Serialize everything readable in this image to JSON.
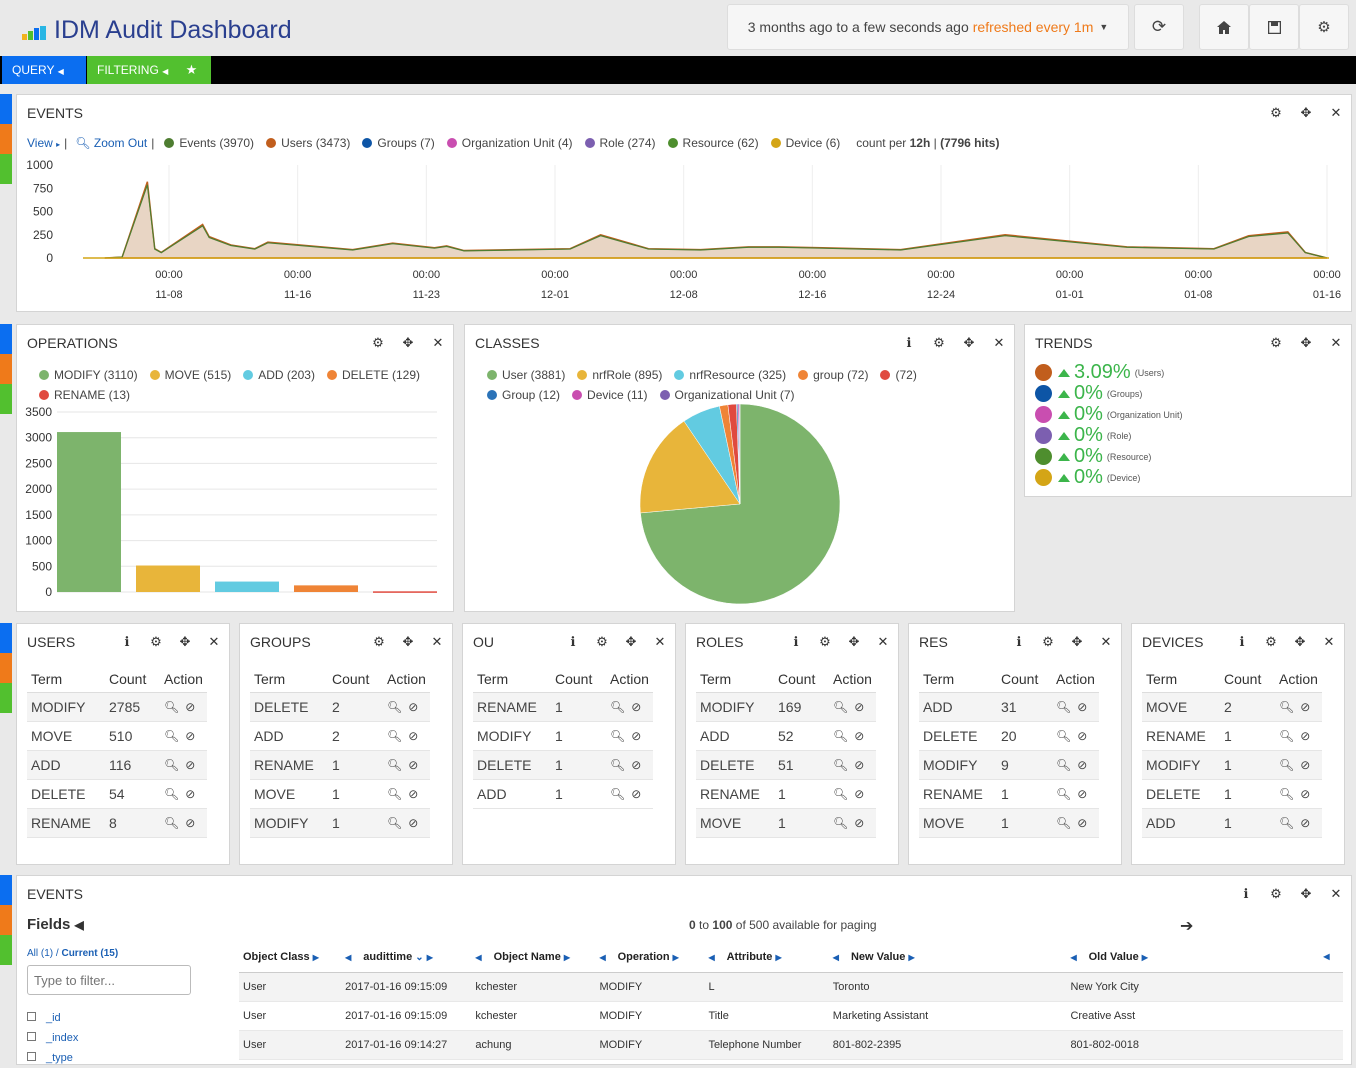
{
  "header": {
    "title": "IDM Audit Dashboard",
    "time_range": "3 months ago to a few seconds ago",
    "refresh": "refreshed every 1m"
  },
  "colors": {
    "accent": "#0b6ef0",
    "green": "#52c02f",
    "events": "#4e7d31",
    "users": "#c15e1d",
    "groups": "#0d55a6",
    "ou": "#c94eb0",
    "role": "#7c5fb0",
    "resource": "#4e8e2e",
    "device": "#d4a516"
  },
  "query_bar": {
    "query": "QUERY",
    "filtering": "FILTERING"
  },
  "events_panel": {
    "title": "EVENTS",
    "view": "View",
    "zoom_out": "Zoom Out",
    "legend": [
      {
        "label": "Events (3970)",
        "color": "#4e7d31"
      },
      {
        "label": "Users (3473)",
        "color": "#c15e1d"
      },
      {
        "label": "Groups (7)",
        "color": "#0d55a6"
      },
      {
        "label": "Organization Unit (4)",
        "color": "#c94eb0"
      },
      {
        "label": "Role (274)",
        "color": "#7c5fb0"
      },
      {
        "label": "Resource (62)",
        "color": "#4e8e2e"
      },
      {
        "label": "Device (6)",
        "color": "#d4a516"
      }
    ],
    "count_per": "count per ",
    "interval": "12h",
    "hits": " (7796 hits)"
  },
  "chart_data": [
    {
      "type": "area",
      "title": "EVENTS",
      "ylim": [
        0,
        1000
      ],
      "yticks": [
        0,
        250,
        500,
        750,
        1000
      ],
      "xticks": [
        {
          "time": "00:00",
          "date": "11-08"
        },
        {
          "time": "00:00",
          "date": "11-16"
        },
        {
          "time": "00:00",
          "date": "11-23"
        },
        {
          "time": "00:00",
          "date": "12-01"
        },
        {
          "time": "00:00",
          "date": "12-08"
        },
        {
          "time": "00:00",
          "date": "12-16"
        },
        {
          "time": "00:00",
          "date": "12-24"
        },
        {
          "time": "00:00",
          "date": "01-01"
        },
        {
          "time": "00:00",
          "date": "01-08"
        },
        {
          "time": "00:00",
          "date": "01-16"
        }
      ],
      "peaks": [
        {
          "x": 0.05,
          "y": 0
        },
        {
          "x": 0.09,
          "y": 10
        },
        {
          "x": 0.148,
          "y": 820
        },
        {
          "x": 0.165,
          "y": 100
        },
        {
          "x": 0.18,
          "y": 60
        },
        {
          "x": 0.275,
          "y": 360
        },
        {
          "x": 0.29,
          "y": 230
        },
        {
          "x": 0.34,
          "y": 140
        },
        {
          "x": 0.395,
          "y": 100
        },
        {
          "x": 0.425,
          "y": 170
        },
        {
          "x": 0.62,
          "y": 90
        },
        {
          "x": 0.712,
          "y": 160
        },
        {
          "x": 0.808,
          "y": 110
        },
        {
          "x": 0.836,
          "y": 130
        },
        {
          "x": 0.876,
          "y": 80
        },
        {
          "x": 1.12,
          "y": 100
        },
        {
          "x": 1.19,
          "y": 250
        },
        {
          "x": 1.3,
          "y": 100
        },
        {
          "x": 1.42,
          "y": 90
        },
        {
          "x": 1.53,
          "y": 120
        },
        {
          "x": 1.6,
          "y": 120
        },
        {
          "x": 1.7,
          "y": 110
        },
        {
          "x": 1.88,
          "y": 90
        },
        {
          "x": 2.12,
          "y": 250
        },
        {
          "x": 2.4,
          "y": 120
        },
        {
          "x": 2.6,
          "y": 100
        },
        {
          "x": 2.68,
          "y": 240
        },
        {
          "x": 2.77,
          "y": 280
        },
        {
          "x": 2.81,
          "y": 60
        },
        {
          "x": 2.86,
          "y": 0
        }
      ]
    },
    {
      "type": "bar",
      "title": "OPERATIONS",
      "categories": [
        "MODIFY",
        "MOVE",
        "ADD",
        "DELETE",
        "RENAME"
      ],
      "values": [
        3110,
        515,
        203,
        129,
        13
      ],
      "colors": [
        "#7db46c",
        "#e8b53a",
        "#62cbe1",
        "#ef8436",
        "#e04a3f"
      ],
      "ylim": [
        0,
        3500
      ],
      "yticks": [
        0,
        500,
        1000,
        1500,
        2000,
        2500,
        3000,
        3500
      ]
    },
    {
      "type": "pie",
      "title": "CLASSES",
      "categories": [
        "User",
        "nrfRole",
        "nrfResource",
        "group",
        "",
        "Group",
        "Device",
        "Organizational Unit"
      ],
      "values": [
        3881,
        895,
        325,
        72,
        72,
        12,
        11,
        7
      ],
      "colors": [
        "#7db46c",
        "#e8b53a",
        "#62cbe1",
        "#ef8436",
        "#e04a3f",
        "#2b73b8",
        "#c94eb0",
        "#7c5fb0"
      ]
    }
  ],
  "operations": {
    "title": "OPERATIONS",
    "legend": [
      {
        "label": "MODIFY (3110)",
        "color": "#7db46c"
      },
      {
        "label": "MOVE (515)",
        "color": "#e8b53a"
      },
      {
        "label": "ADD (203)",
        "color": "#62cbe1"
      },
      {
        "label": "DELETE (129)",
        "color": "#ef8436"
      },
      {
        "label": "RENAME (13)",
        "color": "#e04a3f"
      }
    ]
  },
  "classes": {
    "title": "CLASSES",
    "legend": [
      {
        "label": "User (3881)",
        "color": "#7db46c"
      },
      {
        "label": "nrfRole (895)",
        "color": "#e8b53a"
      },
      {
        "label": "nrfResource (325)",
        "color": "#62cbe1"
      },
      {
        "label": "group (72)",
        "color": "#ef8436"
      },
      {
        "label": "(72)",
        "color": "#e04a3f"
      },
      {
        "label": "Group (12)",
        "color": "#2b73b8"
      },
      {
        "label": "Device (11)",
        "color": "#c94eb0"
      },
      {
        "label": "Organizational Unit (7)",
        "color": "#7c5fb0"
      }
    ]
  },
  "trends": {
    "title": "TRENDS",
    "items": [
      {
        "value": "3.09%",
        "label": "(Users)",
        "color": "#c15e1d"
      },
      {
        "value": "0%",
        "label": "(Groups)",
        "color": "#0d55a6"
      },
      {
        "value": "0%",
        "label": "(Organization Unit)",
        "color": "#c94eb0"
      },
      {
        "value": "0%",
        "label": "(Role)",
        "color": "#7c5fb0"
      },
      {
        "value": "0%",
        "label": "(Resource)",
        "color": "#4e8e2e"
      },
      {
        "value": "0%",
        "label": "(Device)",
        "color": "#d4a516"
      }
    ]
  },
  "term_headers": {
    "term": "Term",
    "count": "Count",
    "action": "Action"
  },
  "term_panels": [
    {
      "title": "USERS",
      "rows": [
        [
          "MODIFY",
          "2785"
        ],
        [
          "MOVE",
          "510"
        ],
        [
          "ADD",
          "116"
        ],
        [
          "DELETE",
          "54"
        ],
        [
          "RENAME",
          "8"
        ]
      ]
    },
    {
      "title": "GROUPS",
      "rows": [
        [
          "DELETE",
          "2"
        ],
        [
          "ADD",
          "2"
        ],
        [
          "RENAME",
          "1"
        ],
        [
          "MOVE",
          "1"
        ],
        [
          "MODIFY",
          "1"
        ]
      ]
    },
    {
      "title": "OU",
      "rows": [
        [
          "RENAME",
          "1"
        ],
        [
          "MODIFY",
          "1"
        ],
        [
          "DELETE",
          "1"
        ],
        [
          "ADD",
          "1"
        ]
      ]
    },
    {
      "title": "ROLES",
      "rows": [
        [
          "MODIFY",
          "169"
        ],
        [
          "ADD",
          "52"
        ],
        [
          "DELETE",
          "51"
        ],
        [
          "RENAME",
          "1"
        ],
        [
          "MOVE",
          "1"
        ]
      ]
    },
    {
      "title": "RES",
      "rows": [
        [
          "ADD",
          "31"
        ],
        [
          "DELETE",
          "20"
        ],
        [
          "MODIFY",
          "9"
        ],
        [
          "RENAME",
          "1"
        ],
        [
          "MOVE",
          "1"
        ]
      ]
    },
    {
      "title": "DEVICES",
      "rows": [
        [
          "MOVE",
          "2"
        ],
        [
          "RENAME",
          "1"
        ],
        [
          "MODIFY",
          "1"
        ],
        [
          "DELETE",
          "1"
        ],
        [
          "ADD",
          "1"
        ]
      ]
    }
  ],
  "table_panel": {
    "title": "EVENTS",
    "fields": "Fields",
    "all": "All (1)",
    "current": "Current (15)",
    "filter_placeholder": "Type to filter...",
    "field_items": [
      "_id",
      "_index",
      "_type"
    ],
    "paging_from": "0",
    "paging_to": "to",
    "paging_count": "100",
    "paging_rest": "of 500 available for paging",
    "columns": [
      "Object Class",
      "audittime",
      "Object Name",
      "Operation",
      "Attribute",
      "New Value",
      "Old Value"
    ],
    "rows": [
      [
        "User",
        "2017-01-16 09:15:09",
        "kchester",
        "MODIFY",
        "L",
        "Toronto",
        "New York City"
      ],
      [
        "User",
        "2017-01-16 09:15:09",
        "kchester",
        "MODIFY",
        "Title",
        "Marketing Assistant",
        "Creative Asst"
      ],
      [
        "User",
        "2017-01-16 09:14:27",
        "achung",
        "MODIFY",
        "Telephone Number",
        "801-802-2395",
        "801-802-0018"
      ]
    ]
  }
}
